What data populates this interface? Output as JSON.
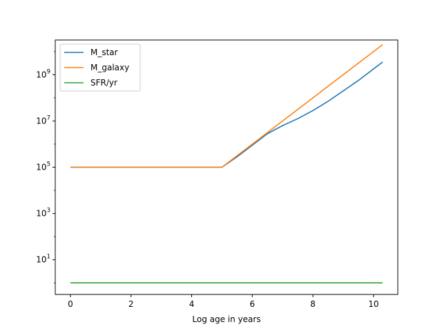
{
  "chart_data": {
    "type": "line",
    "title": "",
    "xlabel": "Log age in years",
    "ylabel": "",
    "yscale": "log",
    "xlim": [
      -0.5,
      10.8
    ],
    "ylim_exp": [
      -0.5,
      10.5
    ],
    "xticks": [
      0,
      2,
      4,
      6,
      8,
      10
    ],
    "yticks_exp": [
      1,
      3,
      5,
      7,
      9
    ],
    "legend_position": "upper-left",
    "grid": false,
    "series": [
      {
        "name": "M_star",
        "color": "#1f77b4",
        "x": [
          0,
          5,
          5.5,
          6,
          6.5,
          7,
          7.5,
          8,
          8.5,
          9,
          9.5,
          10,
          10.3
        ],
        "y_log10": [
          5.0,
          5.0,
          5.45,
          5.95,
          6.45,
          6.8,
          7.1,
          7.45,
          7.85,
          8.3,
          8.75,
          9.25,
          9.55
        ]
      },
      {
        "name": "M_galaxy",
        "color": "#ff7f0e",
        "x": [
          0,
          5,
          10.3
        ],
        "y_log10": [
          5.0,
          5.0,
          10.3
        ]
      },
      {
        "name": "SFR/yr",
        "color": "#2ca02c",
        "x": [
          0,
          10.3
        ],
        "y_log10": [
          0.0,
          0.0
        ]
      }
    ]
  }
}
